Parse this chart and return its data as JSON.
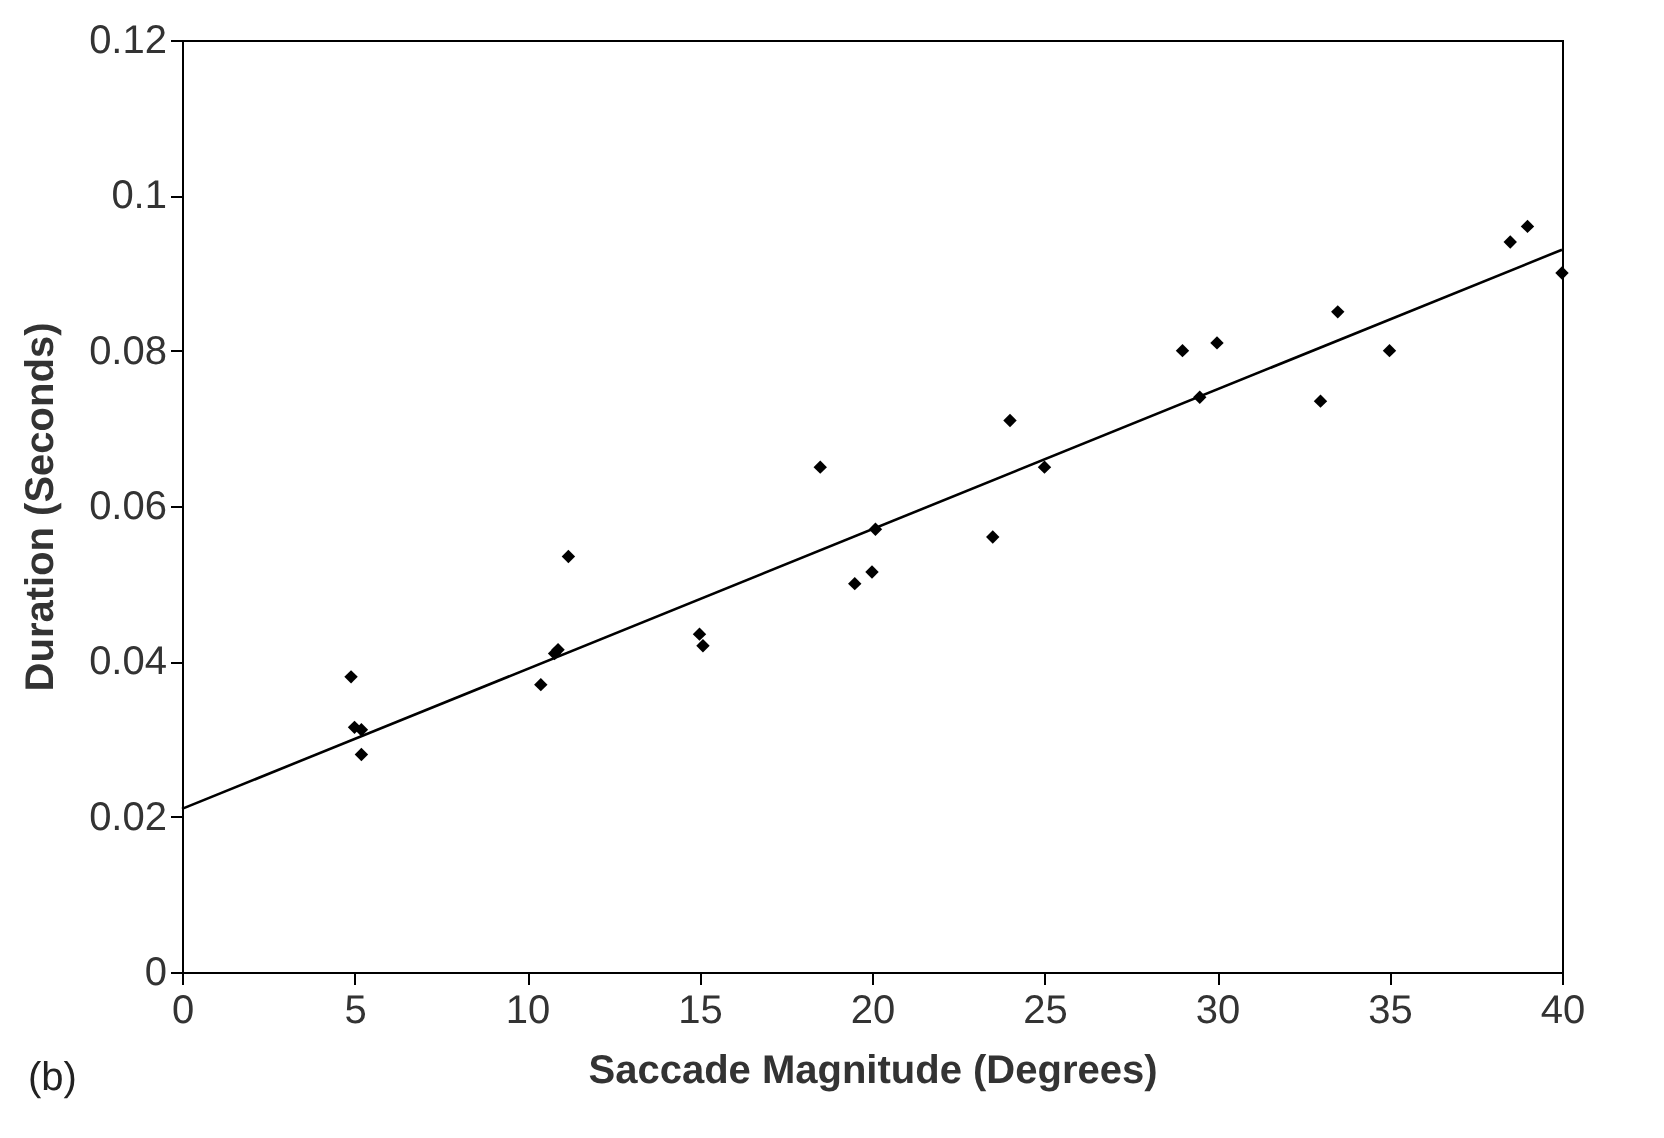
{
  "chart_data": {
    "type": "scatter",
    "xlabel": "Saccade Magnitude (Degrees)",
    "ylabel": "Duration (Seconds)",
    "annotations": [
      "(b)"
    ],
    "xlim": [
      0,
      40
    ],
    "ylim": [
      0,
      0.12
    ],
    "xticks": [
      0,
      5,
      10,
      15,
      20,
      25,
      30,
      35,
      40
    ],
    "yticks": [
      0,
      0.02,
      0.04,
      0.06,
      0.08,
      0.1,
      0.12
    ],
    "grid": false,
    "series": [
      {
        "marker": "diamond",
        "color": "#000000",
        "x": [
          4.9,
          5.0,
          5.2,
          5.2,
          10.4,
          10.8,
          10.9,
          11.2,
          15.0,
          15.1,
          18.5,
          19.5,
          20.0,
          20.1,
          23.5,
          24.0,
          25.0,
          29.0,
          29.5,
          30.0,
          33.0,
          33.5,
          35.0,
          38.5,
          39.0,
          40.0
        ],
        "values": [
          0.038,
          0.0315,
          0.0312,
          0.028,
          0.037,
          0.041,
          0.0415,
          0.0535,
          0.0435,
          0.042,
          0.065,
          0.05,
          0.0515,
          0.057,
          0.056,
          0.071,
          0.065,
          0.08,
          0.074,
          0.081,
          0.0735,
          0.085,
          0.08,
          0.094,
          0.096,
          0.09
        ]
      },
      {
        "type": "line",
        "marker": "none",
        "color": "#000000",
        "x": [
          0,
          40
        ],
        "values": [
          0.021,
          0.093
        ]
      }
    ]
  }
}
